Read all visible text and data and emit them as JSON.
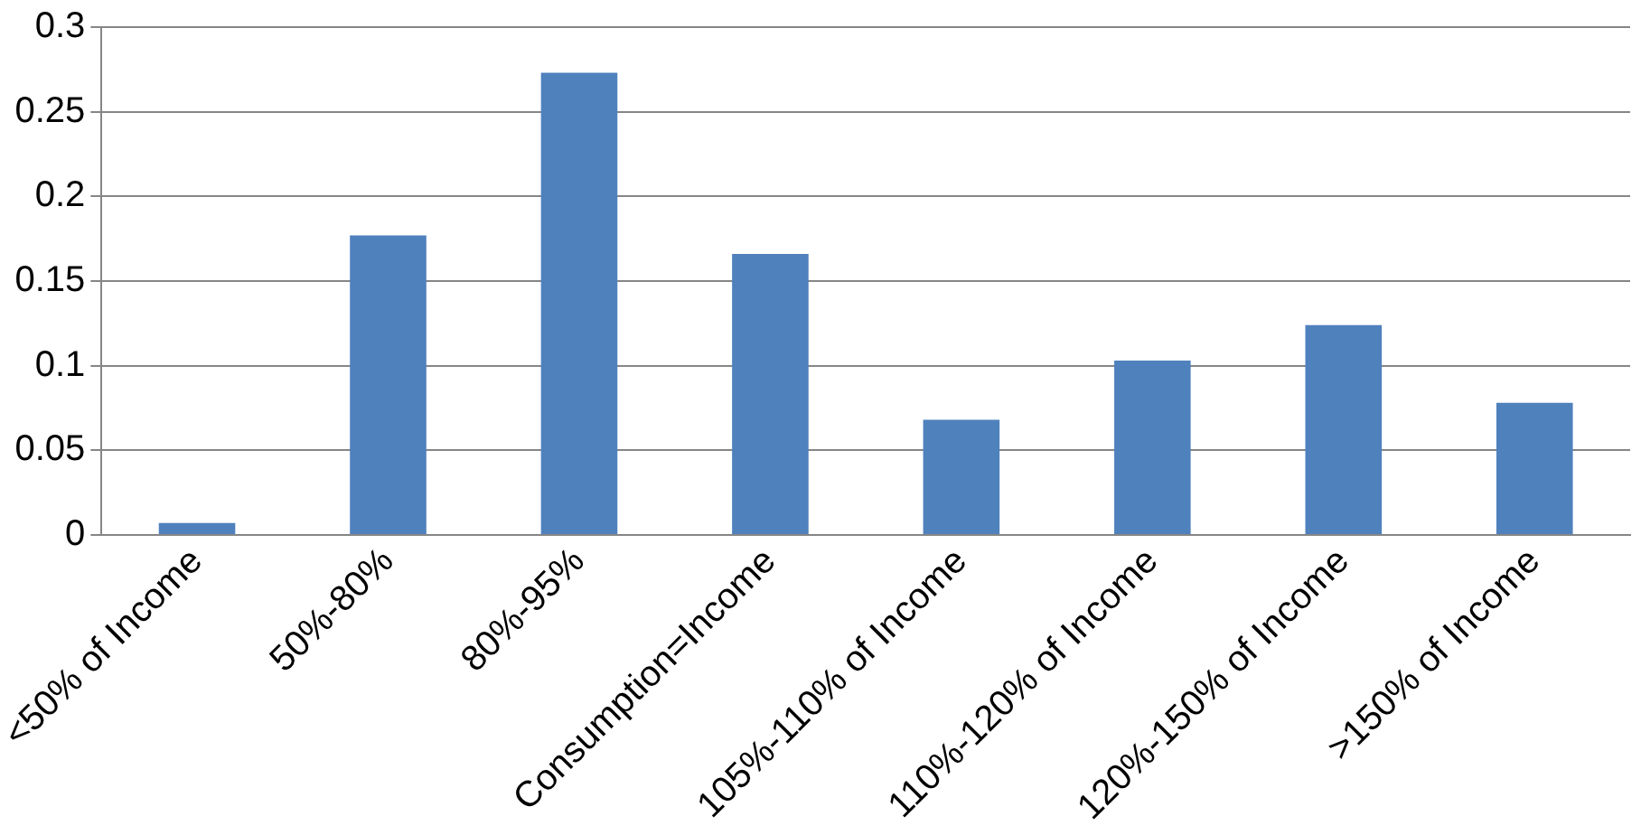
{
  "chart_data": {
    "type": "bar",
    "categories": [
      "<50% of Income",
      "50%-80%",
      "80%-95%",
      "Consumption=Income",
      "105%-110% of Income",
      "110%-120% of Income",
      "120%-150% of Income",
      ">150% of Income"
    ],
    "values": [
      0.007,
      0.177,
      0.273,
      0.166,
      0.068,
      0.103,
      0.124,
      0.078
    ],
    "color": "#4f81bd",
    "ylim": [
      0,
      0.3
    ],
    "yticks": [
      0,
      0.05,
      0.1,
      0.15,
      0.2,
      0.25,
      0.3
    ],
    "grid": "y",
    "legend": false
  }
}
